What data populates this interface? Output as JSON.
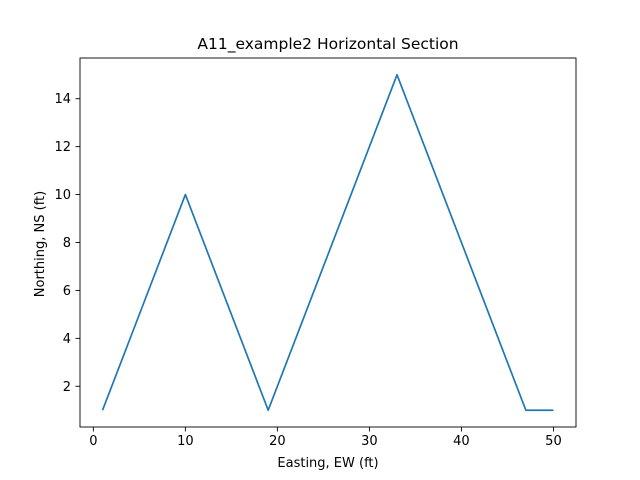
{
  "chart_data": {
    "type": "line",
    "title": "A11_example2 Horizontal Section",
    "xlabel": "Easting, EW (ft)",
    "ylabel": "Northing, NS (ft)",
    "xlim": [
      -1.45,
      52.45
    ],
    "ylim": [
      0.3,
      15.7
    ],
    "xticks": [
      0,
      10,
      20,
      30,
      40,
      50
    ],
    "yticks": [
      2,
      4,
      6,
      8,
      10,
      12,
      14
    ],
    "grid": false,
    "series": [
      {
        "color": "#1f77b4",
        "x": [
          1,
          10,
          19,
          33,
          47,
          50
        ],
        "y": [
          1,
          10,
          1,
          15,
          1,
          1
        ]
      }
    ]
  }
}
